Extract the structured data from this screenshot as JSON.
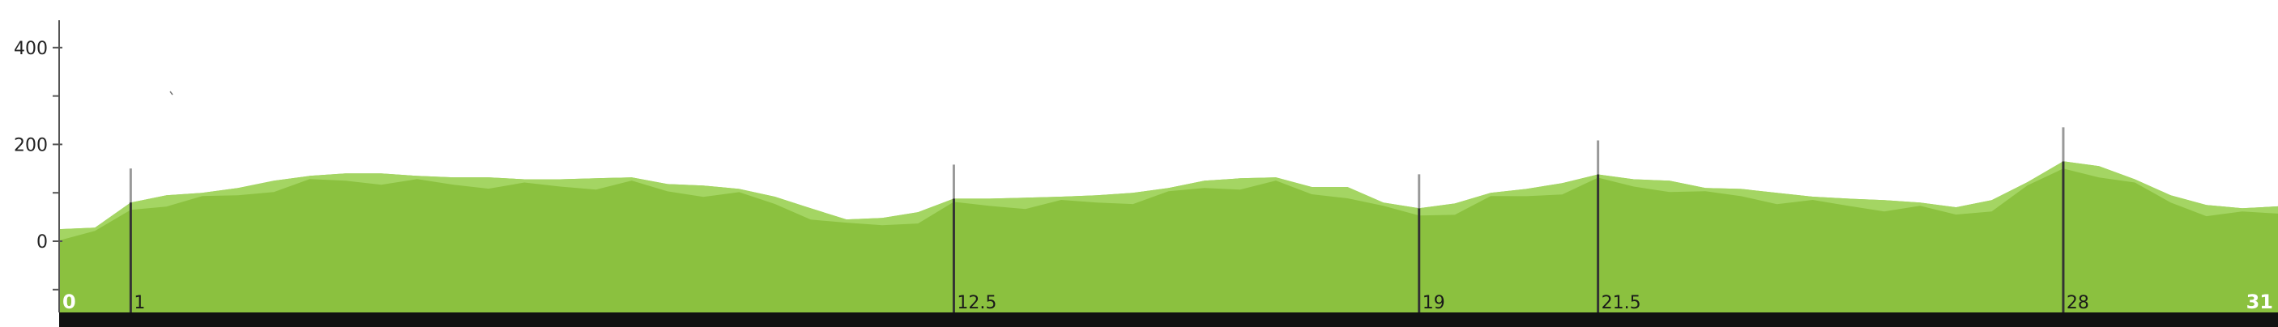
{
  "chart_data": {
    "type": "area",
    "title": "",
    "xlabel": "",
    "ylabel": "",
    "xlim": [
      0,
      31
    ],
    "ylim": [
      -150,
      450
    ],
    "yticks": [
      400,
      200,
      0
    ],
    "grid": false,
    "colors": {
      "profile": "#8bc13f",
      "highlight": "#a8d86a",
      "baseline": "#111111",
      "marker_gray": "#999999",
      "marker_dark": "#333333",
      "axis": "#555555"
    },
    "series": [
      {
        "values": [
          [
            0,
            25
          ],
          [
            0.5,
            28
          ],
          [
            1,
            80
          ],
          [
            1.5,
            95
          ],
          [
            2,
            100
          ],
          [
            2.5,
            110
          ],
          [
            3,
            125
          ],
          [
            3.5,
            135
          ],
          [
            4,
            140
          ],
          [
            4.5,
            140
          ],
          [
            5,
            135
          ],
          [
            5.5,
            132
          ],
          [
            6,
            132
          ],
          [
            6.5,
            128
          ],
          [
            7,
            128
          ],
          [
            7.5,
            130
          ],
          [
            8,
            132
          ],
          [
            8.5,
            118
          ],
          [
            9,
            115
          ],
          [
            9.5,
            108
          ],
          [
            10,
            92
          ],
          [
            10.5,
            68
          ],
          [
            11,
            45
          ],
          [
            11.5,
            48
          ],
          [
            12,
            60
          ],
          [
            12.5,
            88
          ],
          [
            13,
            88
          ],
          [
            13.5,
            90
          ],
          [
            14,
            92
          ],
          [
            14.5,
            95
          ],
          [
            15,
            100
          ],
          [
            15.5,
            110
          ],
          [
            16,
            125
          ],
          [
            16.5,
            130
          ],
          [
            17,
            132
          ],
          [
            17.5,
            112
          ],
          [
            18,
            112
          ],
          [
            18.5,
            80
          ],
          [
            19,
            68
          ],
          [
            19.5,
            78
          ],
          [
            20,
            100
          ],
          [
            20.5,
            108
          ],
          [
            21,
            120
          ],
          [
            21.5,
            138
          ],
          [
            22,
            128
          ],
          [
            22.5,
            125
          ],
          [
            23,
            110
          ],
          [
            23.5,
            108
          ],
          [
            24,
            100
          ],
          [
            24.5,
            92
          ],
          [
            25,
            88
          ],
          [
            25.5,
            85
          ],
          [
            26,
            80
          ],
          [
            26.5,
            70
          ],
          [
            27,
            85
          ],
          [
            27.5,
            122
          ],
          [
            28,
            165
          ],
          [
            28.5,
            155
          ],
          [
            29,
            128
          ],
          [
            29.5,
            95
          ],
          [
            30,
            75
          ],
          [
            30.5,
            68
          ],
          [
            31,
            72
          ]
        ]
      }
    ],
    "km_markers": [
      {
        "label": "0",
        "x": 0,
        "edge": true
      },
      {
        "label": "1",
        "x": 1
      },
      {
        "label": "12.5",
        "x": 12.5
      },
      {
        "label": "19",
        "x": 19
      },
      {
        "label": "21.5",
        "x": 21.5
      },
      {
        "label": "28",
        "x": 28
      },
      {
        "label": "31",
        "x": 31,
        "edge": true
      }
    ]
  }
}
